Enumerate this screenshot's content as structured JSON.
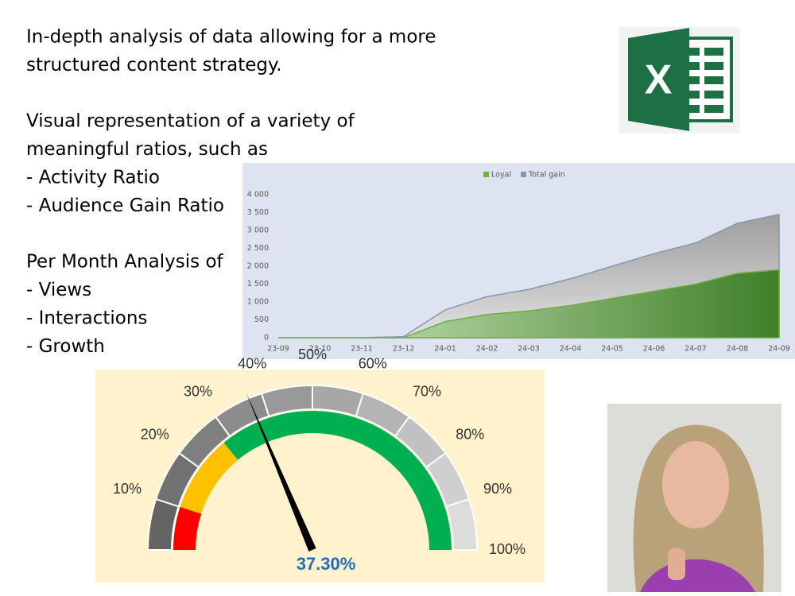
{
  "text_blocks": [
    [
      "In-depth analysis of data allowing for a more",
      "structured content strategy."
    ],
    [
      "Visual representation of a variety of",
      "meaningful ratios, such as",
      "-  Activity Ratio",
      "- Audience Gain Ratio"
    ],
    [
      "Per Month Analysis of",
      "- Views",
      "- Interactions",
      "- Growth"
    ]
  ],
  "chart_data": [
    {
      "type": "area",
      "categories": [
        "23-09",
        "23-10",
        "23-11",
        "23-12",
        "24-01",
        "24-02",
        "24-03",
        "24-04",
        "24-05",
        "24-06",
        "24-07",
        "24-08",
        "24-09"
      ],
      "series": [
        {
          "name": "Loyal",
          "color": "#70ad47",
          "values": [
            0,
            0,
            0,
            0,
            450,
            650,
            750,
            900,
            1100,
            1300,
            1500,
            1800,
            1900
          ]
        },
        {
          "name": "Total gain",
          "color": "#8497b0",
          "values": [
            0,
            0,
            0,
            30,
            780,
            1150,
            1350,
            1650,
            2000,
            2350,
            2650,
            3200,
            3450
          ]
        }
      ],
      "ylim": [
        0,
        4000
      ],
      "yticks": [
        0,
        {
          "value": 500,
          "label": "500"
        },
        {
          "value": 1000,
          "label": "1 000"
        },
        {
          "value": 1500,
          "label": "1 500"
        },
        {
          "value": 2000,
          "label": "2 000"
        },
        {
          "value": 2500,
          "label": "2 500"
        },
        {
          "value": 3000,
          "label": "3 000"
        },
        {
          "value": 3500,
          "label": "3 500"
        },
        {
          "value": 4000,
          "label": "4 000"
        }
      ],
      "legend": "top"
    },
    {
      "type": "gauge",
      "value": 37.3,
      "value_label": "37.30%",
      "lim": [
        0,
        100
      ],
      "ticks": [
        {
          "value": 10,
          "label": "10%"
        },
        {
          "value": 20,
          "label": "20%"
        },
        {
          "value": 30,
          "label": "30%"
        },
        {
          "value": 40,
          "label": "40%"
        },
        {
          "value": 50,
          "label": "50%"
        },
        {
          "value": 60,
          "label": "60%"
        },
        {
          "value": 70,
          "label": "70%"
        },
        {
          "value": 80,
          "label": "80%"
        },
        {
          "value": 90,
          "label": "90%"
        },
        {
          "value": 100,
          "label": "100%"
        }
      ],
      "bands": [
        {
          "from": 0,
          "to": 10,
          "color": "#ff0000"
        },
        {
          "from": 10,
          "to": 28,
          "color": "#ffc000"
        },
        {
          "from": 28,
          "to": 100,
          "color": "#00b050"
        }
      ]
    }
  ]
}
